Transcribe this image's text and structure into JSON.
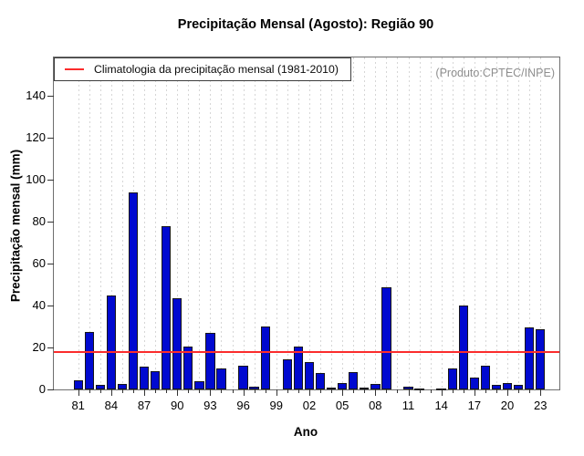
{
  "title": "Precipitação Mensal (Agosto): Região 90",
  "watermark": "(Produto:CPTEC/INPE)",
  "legend": {
    "label": "Climatologia da precipitação mensal (1981-2010)"
  },
  "chart_data": {
    "type": "bar",
    "title": "Precipitação Mensal (Agosto): Região 90",
    "xlabel": "Ano",
    "ylabel": "Precipitação mensal (mm)",
    "ylim": [
      0,
      140
    ],
    "yticks": [
      0,
      20,
      40,
      60,
      80,
      100,
      120,
      140
    ],
    "grid": "vertical-dashed-per-year",
    "legend_position": "top-left-inside",
    "bar_color": "#0009d0",
    "bar_border_color": "#000000",
    "climatology_line_color": "#ff0000",
    "climatology_value_mm": 18,
    "years": [
      1981,
      1982,
      1983,
      1984,
      1985,
      1986,
      1987,
      1988,
      1989,
      1990,
      1991,
      1992,
      1993,
      1994,
      1995,
      1996,
      1997,
      1998,
      1999,
      2000,
      2001,
      2002,
      2003,
      2004,
      2005,
      2006,
      2007,
      2008,
      2009,
      2010,
      2011,
      2012,
      2013,
      2014,
      2015,
      2016,
      2017,
      2018,
      2019,
      2020,
      2021,
      2022,
      2023
    ],
    "values": [
      4.3,
      27.4,
      2.0,
      44.7,
      2.8,
      94.0,
      10.7,
      8.6,
      77.8,
      43.4,
      20.3,
      3.7,
      27.1,
      9.8,
      0,
      11.2,
      1.1,
      29.8,
      0,
      14.2,
      20.3,
      12.9,
      7.9,
      1.0,
      2.9,
      8.1,
      0.8,
      2.5,
      48.7,
      0,
      1.3,
      0.5,
      0,
      0.5,
      10.2,
      40.0,
      5.6,
      11.5,
      2.0,
      3.0,
      2.0,
      29.5,
      28.8
    ],
    "xtick_labeled_years": [
      1981,
      1984,
      1987,
      1990,
      1993,
      1996,
      1999,
      2002,
      2005,
      2008,
      2011,
      2014,
      2017,
      2020,
      2023
    ],
    "xtick_labels": [
      "81",
      "84",
      "87",
      "90",
      "93",
      "96",
      "99",
      "02",
      "05",
      "08",
      "11",
      "14",
      "17",
      "20",
      "23"
    ]
  }
}
